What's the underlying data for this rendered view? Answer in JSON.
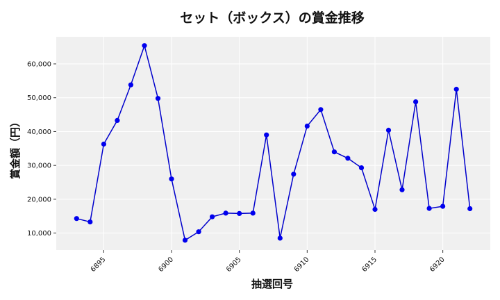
{
  "chart_data": {
    "type": "line",
    "title": "セット（ボックス）の賞金推移",
    "xlabel": "抽選回号",
    "ylabel": "賞金額（円）",
    "x": [
      6893,
      6894,
      6895,
      6896,
      6897,
      6898,
      6899,
      6900,
      6901,
      6902,
      6903,
      6904,
      6905,
      6906,
      6907,
      6908,
      6909,
      6910,
      6911,
      6912,
      6913,
      6914,
      6915,
      6916,
      6917,
      6918,
      6919,
      6920,
      6921,
      6922
    ],
    "series": [
      {
        "values": [
          14300,
          13300,
          36300,
          43300,
          53800,
          65400,
          49800,
          26000,
          7900,
          10400,
          14800,
          15900,
          15800,
          15900,
          39000,
          8500,
          27400,
          41600,
          46500,
          34000,
          32100,
          29300,
          17000,
          40400,
          22800,
          48800,
          17300,
          17900,
          52500,
          17200
        ]
      }
    ],
    "xlim": [
      6891.5,
      6923.5
    ],
    "ylim": [
      5000,
      68000
    ],
    "xticks": [
      "6895",
      "6900",
      "6905",
      "6910",
      "6915",
      "6920"
    ],
    "yticks": [
      "10,000",
      "20,000",
      "30,000",
      "40,000",
      "50,000",
      "60,000"
    ],
    "grid": true,
    "colors": {
      "line": "#0000cc",
      "marker": "#0000ee",
      "plot_bg": "#f0f0f0",
      "grid": "#ffffff"
    }
  }
}
